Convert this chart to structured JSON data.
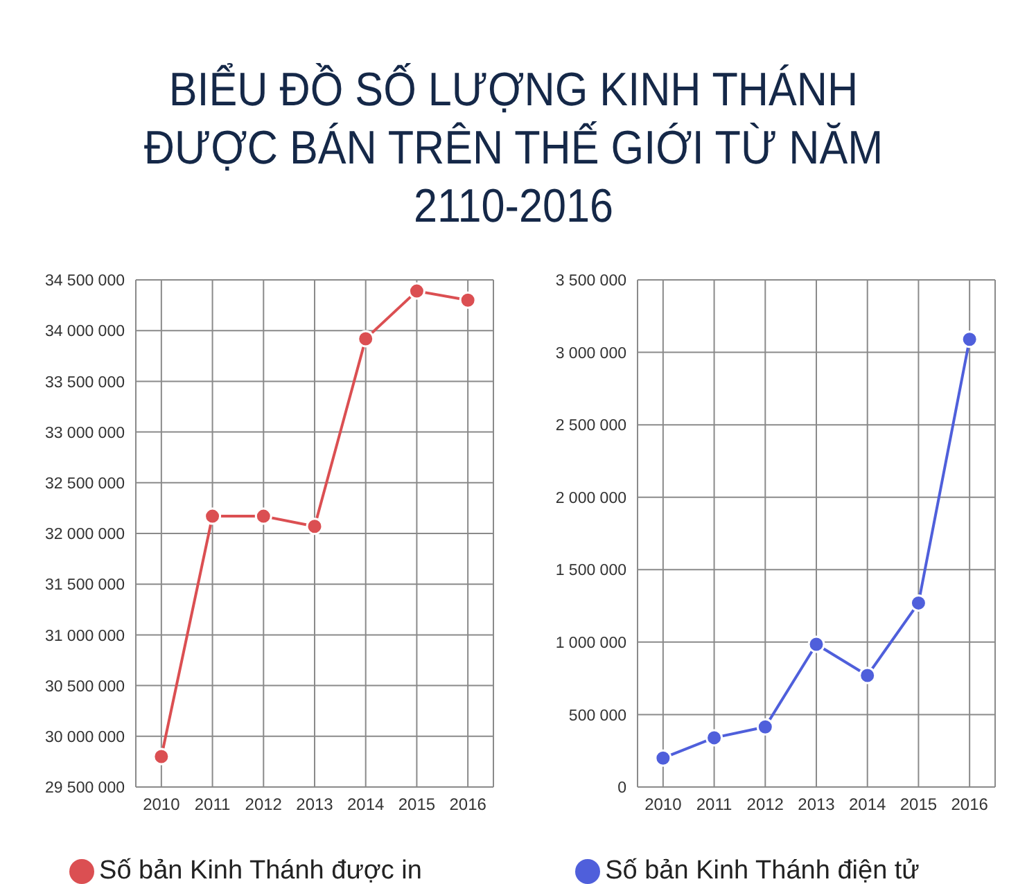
{
  "chart_data": [
    {
      "type": "line",
      "title": "BIỂU ĐỒ SỐ LƯỢNG KINH THÁNH ĐƯỢC BÁN TRÊN THẾ GIỚI TỪ NĂM 2110-2016",
      "categories": [
        "2010",
        "2011",
        "2012",
        "2013",
        "2014",
        "2015",
        "2016"
      ],
      "series": [
        {
          "name": "Số bản Kinh Thánh được in",
          "color": "#db4f52",
          "values": [
            29800000,
            32170000,
            32170000,
            32070000,
            33920000,
            34390000,
            34300000
          ]
        }
      ],
      "ylim": [
        29500000,
        34500000
      ],
      "yticks": [
        {
          "value": 29500000,
          "label": "29 500 000"
        },
        {
          "value": 30000000,
          "label": "30 000 000"
        },
        {
          "value": 30500000,
          "label": "30 500 000"
        },
        {
          "value": 31000000,
          "label": "31 000 000"
        },
        {
          "value": 31500000,
          "label": "31 500 000"
        },
        {
          "value": 32000000,
          "label": "32 000 000"
        },
        {
          "value": 32500000,
          "label": "32 500 000"
        },
        {
          "value": 33000000,
          "label": "33 000 000"
        },
        {
          "value": 33500000,
          "label": "33 500 000"
        },
        {
          "value": 34000000,
          "label": "34 000 000"
        },
        {
          "value": 34500000,
          "label": "34 500 000"
        }
      ],
      "grid": true,
      "legend": "bottom",
      "marker": "circle",
      "line_style": "solid"
    },
    {
      "type": "line",
      "categories": [
        "2010",
        "2011",
        "2012",
        "2013",
        "2014",
        "2015",
        "2016"
      ],
      "series": [
        {
          "name": "Số bản Kinh Thánh điện tử",
          "color": "#4f5fdb",
          "values": [
            200000,
            340000,
            415000,
            985000,
            770000,
            1270000,
            3090000
          ]
        }
      ],
      "ylim": [
        0,
        3500000
      ],
      "yticks": [
        0,
        {
          "value": 500000,
          "label": "500 000"
        },
        {
          "value": 1000000,
          "label": "1 000 000"
        },
        {
          "value": 1500000,
          "label": "1 500 000"
        },
        {
          "value": 2000000,
          "label": "2 000 000"
        },
        {
          "value": 2500000,
          "label": "2 500 000"
        },
        {
          "value": 3000000,
          "label": "3 000 000"
        },
        {
          "value": 3500000,
          "label": "3 500 000"
        }
      ],
      "grid": true,
      "legend": "bottom",
      "marker": "circle",
      "line_style": "solid"
    }
  ]
}
